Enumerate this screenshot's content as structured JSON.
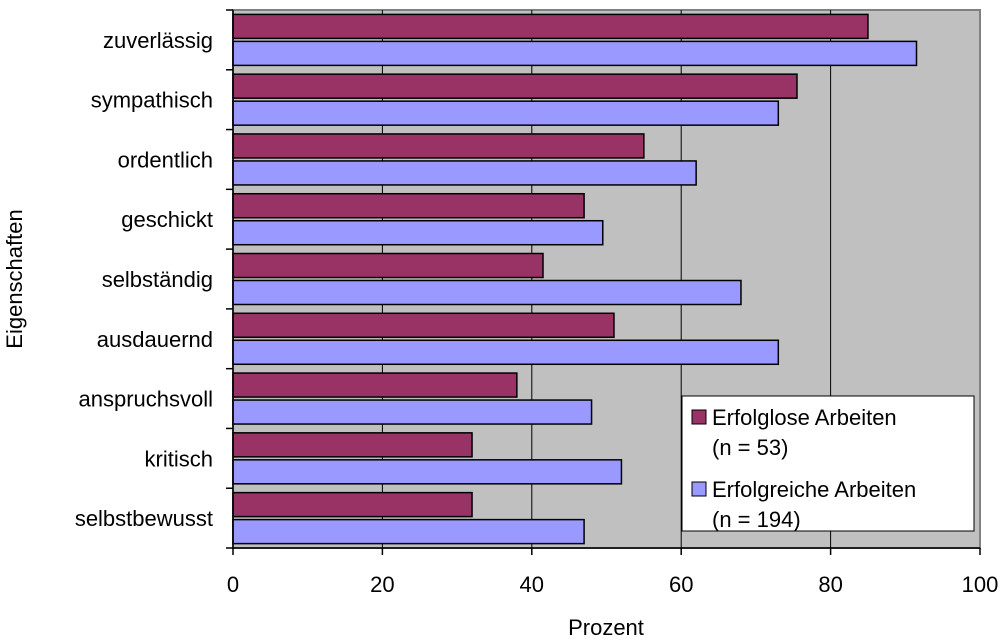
{
  "chart_data": {
    "type": "bar",
    "orientation": "horizontal",
    "categories": [
      "zuverlässig",
      "sympathisch",
      "ordentlich",
      "geschickt",
      "selbständig",
      "ausdauernd",
      "anspruchsvoll",
      "kritisch",
      "selbstbewusst"
    ],
    "series": [
      {
        "name": "Erfolglose Arbeiten (n = 53)",
        "legend_lines": [
          "Erfolglose Arbeiten",
          "(n = 53)"
        ],
        "color": "#993366",
        "values": [
          85,
          75.5,
          55,
          47,
          41.5,
          51,
          38,
          32,
          32
        ]
      },
      {
        "name": "Erfolgreiche Arbeiten (n = 194)",
        "legend_lines": [
          "Erfolgreiche Arbeiten",
          "(n = 194)"
        ],
        "color": "#9999ff",
        "values": [
          91.5,
          73,
          62,
          49.5,
          68,
          73,
          48,
          52,
          47
        ]
      }
    ],
    "xlabel": "Prozent",
    "ylabel": "Eigenschaften",
    "xlim": [
      0,
      100
    ],
    "xticks": [
      "0",
      "20",
      "40",
      "60",
      "80",
      "100"
    ],
    "grid": "vertical",
    "plot_background": "#c0c0c0",
    "legend_position": "bottom-right"
  }
}
